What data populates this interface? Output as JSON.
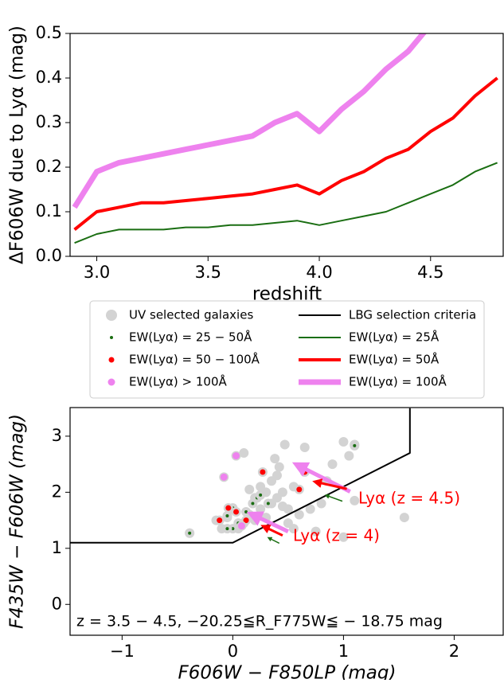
{
  "chart_data": [
    {
      "type": "line",
      "x_label": "redshift",
      "y_label": "ΔF606W due to Lyα (mag)",
      "x": [
        2.9,
        3.0,
        3.1,
        3.2,
        3.3,
        3.4,
        3.5,
        3.6,
        3.7,
        3.8,
        3.9,
        4.0,
        4.1,
        4.2,
        4.3,
        4.4,
        4.5,
        4.6,
        4.7,
        4.8
      ],
      "series": [
        {
          "name": "EW(Lyα) = 25Å",
          "color": "#1a6e12",
          "width": 2,
          "values": [
            0.03,
            0.05,
            0.06,
            0.06,
            0.06,
            0.065,
            0.065,
            0.07,
            0.07,
            0.075,
            0.08,
            0.07,
            0.08,
            0.09,
            0.1,
            0.12,
            0.14,
            0.16,
            0.19,
            0.21
          ]
        },
        {
          "name": "EW(Lyα) = 50Å",
          "color": "#ff0000",
          "width": 4,
          "values": [
            0.06,
            0.1,
            0.11,
            0.12,
            0.12,
            0.125,
            0.13,
            0.135,
            0.14,
            0.15,
            0.16,
            0.14,
            0.17,
            0.19,
            0.22,
            0.24,
            0.28,
            0.31,
            0.36,
            0.4
          ]
        },
        {
          "name": "EW(Lyα) = 100Å",
          "color": "#ee82ee",
          "width": 7,
          "values": [
            0.11,
            0.19,
            0.21,
            0.22,
            0.23,
            0.24,
            0.25,
            0.26,
            0.27,
            0.3,
            0.32,
            0.28,
            0.33,
            0.37,
            0.42,
            0.46,
            0.52,
            null,
            null,
            null
          ]
        }
      ],
      "xlim": [
        2.88,
        4.83
      ],
      "ylim": [
        0,
        0.5
      ],
      "xticks": [
        {
          "value": 3,
          "label": "3.0"
        },
        {
          "value": 3.5,
          "label": "3.5"
        },
        {
          "value": 4,
          "label": "4.0"
        },
        {
          "value": 4.5,
          "label": "4.5"
        }
      ],
      "yticks": [
        {
          "value": 0,
          "label": "0.0"
        },
        {
          "value": 0.1,
          "label": "0.1"
        },
        {
          "value": 0.2,
          "label": "0.2"
        },
        {
          "value": 0.3,
          "label": "0.3"
        },
        {
          "value": 0.4,
          "label": "0.4"
        },
        {
          "value": 0.5,
          "label": "0.5"
        }
      ]
    },
    {
      "type": "scatter",
      "x_label": "F606W − F850LP (mag)",
      "y_label": "F435W − F606W (mag)",
      "note": "z = 3.5 − 4.5, −20.25≦R_F775W≦ − 18.75 mag",
      "annotations": [
        "Lyα (z = 4.5)",
        "Lyα (z = 4)"
      ],
      "series": [
        {
          "name": "UV selected galaxies",
          "color": "#d3d3d3",
          "size": 6,
          "x": [
            -0.39,
            0.05,
            0.1,
            0.15,
            0.2,
            0.25,
            0.3,
            0.35,
            0.4,
            0.45,
            0.3,
            0.35,
            0.4,
            0.42,
            0.38,
            0.47,
            0.65,
            0.55,
            0.6,
            0.7,
            0.8,
            0.85,
            0.9,
            1.0,
            1.05,
            1.1,
            0.25,
            0.2,
            0.15,
            -0.1,
            -0.05,
            0.0,
            -0.15,
            0.5,
            0.55,
            0.75,
            1.0,
            1.1,
            1.55,
            0.1,
            0.45,
            0.5
          ],
          "values": [
            1.27,
            1.35,
            1.45,
            1.6,
            1.5,
            1.7,
            1.55,
            1.8,
            1.9,
            1.75,
            2.0,
            2.2,
            2.3,
            2.45,
            2.6,
            2.85,
            2.8,
            2.1,
            1.6,
            1.7,
            1.8,
            2.2,
            2.5,
            2.9,
            2.65,
            2.85,
            2.1,
            1.9,
            2.05,
            1.35,
            1.55,
            1.7,
            1.5,
            1.45,
            1.35,
            1.3,
            1.2,
            1.85,
            1.55,
            2.7,
            2.0,
            1.7
          ]
        },
        {
          "name": "EW(Lyα) = 25 − 50Å",
          "color": "#1a6e12",
          "size": 2,
          "x": [
            -0.39,
            0.0,
            -0.05,
            0.05,
            0.12,
            0.18,
            0.22,
            0.25,
            0.32,
            0.0,
            -0.05,
            1.1
          ],
          "values": [
            1.27,
            1.35,
            1.35,
            1.45,
            1.65,
            1.8,
            1.9,
            1.95,
            1.8,
            1.72,
            1.58,
            2.83
          ]
        },
        {
          "name": "EW(Lyα) = 50 − 100Å",
          "color": "#ff0000",
          "size": 3.5,
          "x": [
            -0.12,
            0.03,
            0.12,
            0.27,
            0.6,
            0.65,
            -0.04
          ],
          "values": [
            1.5,
            1.65,
            1.5,
            2.36,
            2.05,
            2.36,
            1.72
          ]
        },
        {
          "name": "EW(Lyα) > 100Å",
          "color": "#ee82ee",
          "size": 4.5,
          "x": [
            0.03,
            -0.08,
            0.08
          ],
          "values": [
            2.65,
            2.27,
            1.4
          ]
        },
        {
          "name": "LBG selection criteria",
          "type": "line",
          "color": "#000000",
          "width": 2,
          "x": [
            -1.47,
            0,
            1.6,
            1.6
          ],
          "values": [
            1.1,
            1.1,
            2.7,
            3.5
          ]
        }
      ],
      "arrows": [
        {
          "color": "#ee82ee",
          "width": 5,
          "x": [
            1.06,
            0.6
          ],
          "y": [
            2.01,
            2.47
          ]
        },
        {
          "color": "#ff0000",
          "width": 3,
          "x": [
            1.03,
            0.76
          ],
          "y": [
            2.06,
            2.18
          ]
        },
        {
          "color": "#1a6e12",
          "width": 1.5,
          "x": [
            0.99,
            0.85
          ],
          "y": [
            1.84,
            1.94
          ]
        },
        {
          "color": "#ee82ee",
          "width": 5,
          "x": [
            0.5,
            0.19
          ],
          "y": [
            1.3,
            1.59
          ]
        },
        {
          "color": "#ff0000",
          "width": 3,
          "x": [
            0.45,
            0.29
          ],
          "y": [
            1.23,
            1.38
          ]
        },
        {
          "color": "#1a6e12",
          "width": 1.5,
          "x": [
            0.42,
            0.33
          ],
          "y": [
            1.09,
            1.18
          ]
        }
      ],
      "xlim": [
        -1.47,
        2.45
      ],
      "ylim": [
        -0.55,
        3.51
      ],
      "xticks": [
        {
          "value": -1,
          "label": "−1"
        },
        0,
        1,
        2
      ],
      "yticks": [
        0,
        1,
        2,
        3
      ]
    }
  ]
}
